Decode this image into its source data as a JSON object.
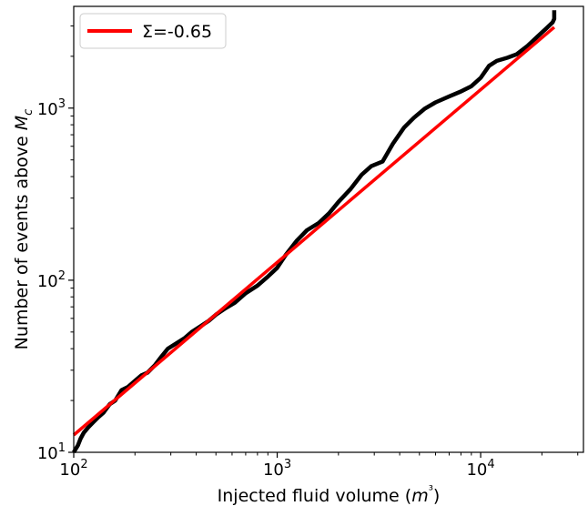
{
  "chart_data": {
    "type": "line",
    "title": "",
    "xlabel": "Injected fluid volume (m³)",
    "ylabel": "Number of events above Mc",
    "x_scale": "log",
    "y_scale": "log",
    "xlim": [
      100,
      32000
    ],
    "ylim": [
      10,
      3900
    ],
    "grid": false,
    "legend_position": "top-left",
    "x_ticks": [
      {
        "value": 100,
        "base": "10",
        "exp": "2"
      },
      {
        "value": 1000,
        "base": "10",
        "exp": "3"
      },
      {
        "value": 10000,
        "base": "10",
        "exp": "4"
      }
    ],
    "y_ticks": [
      {
        "value": 10,
        "base": "10",
        "exp": "1"
      },
      {
        "value": 100,
        "base": "10",
        "exp": "2"
      },
      {
        "value": 1000,
        "base": "10",
        "exp": "3"
      }
    ],
    "series": [
      {
        "name": "",
        "color": "#000000",
        "x": [
          100,
          105,
          108,
          112,
          118,
          125,
          132,
          140,
          150,
          160,
          172,
          185,
          200,
          215,
          230,
          250,
          270,
          290,
          320,
          350,
          380,
          420,
          460,
          500,
          560,
          620,
          700,
          800,
          900,
          1000,
          1100,
          1250,
          1400,
          1600,
          1800,
          2000,
          2300,
          2600,
          2900,
          3300,
          3700,
          4200,
          4700,
          5300,
          6000,
          7000,
          8000,
          9000,
          10000,
          11000,
          12000,
          13500,
          15000,
          17000,
          19000,
          21000,
          22600,
          23000,
          23000
        ],
        "y": [
          10,
          11,
          12,
          13,
          14,
          15,
          16,
          17,
          19,
          20,
          23,
          24,
          26,
          28,
          29,
          32,
          36,
          40,
          43,
          46,
          50,
          54,
          58,
          63,
          69,
          74,
          84,
          93,
          105,
          118,
          140,
          170,
          195,
          215,
          245,
          285,
          340,
          410,
          460,
          490,
          620,
          770,
          880,
          990,
          1080,
          1170,
          1250,
          1340,
          1500,
          1760,
          1880,
          1960,
          2050,
          2300,
          2600,
          2900,
          3150,
          3300,
          3700
        ]
      },
      {
        "name": "Σ=-0.65",
        "color": "#ff0000",
        "x": [
          100,
          23000
        ],
        "y": [
          12.6,
          2950
        ]
      }
    ],
    "legend": [
      {
        "label": "Σ=-0.65",
        "color": "#ff0000"
      }
    ]
  }
}
